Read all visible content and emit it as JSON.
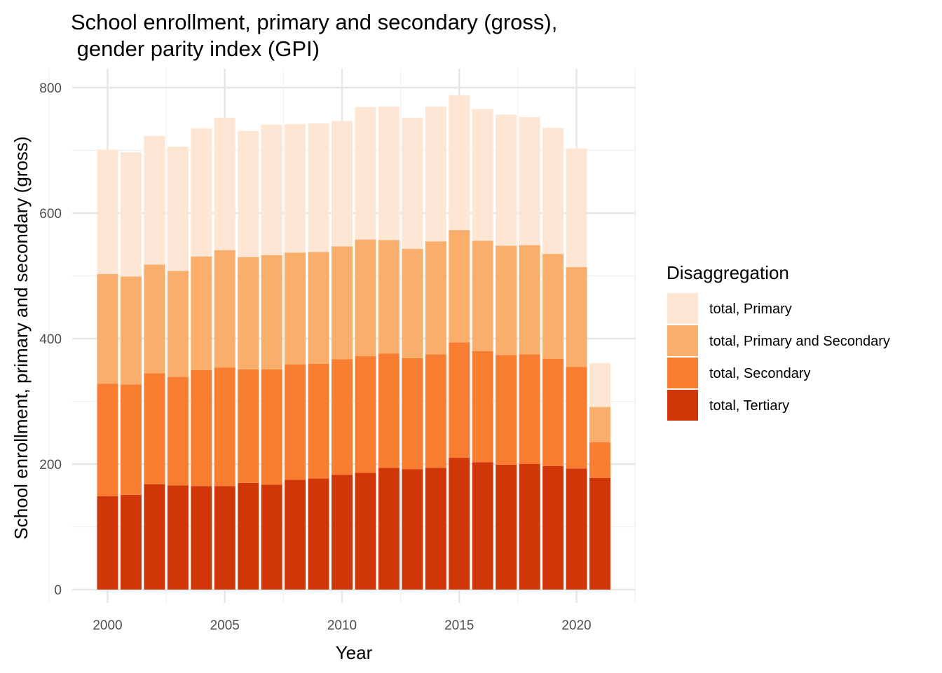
{
  "chart_data": {
    "type": "bar",
    "stacked": true,
    "title_line1": "School enrollment, primary and secondary (gross),",
    "title_line2": " gender parity index (GPI)",
    "xlabel": "Year",
    "ylabel": "School enrollment, primary and secondary (gross)",
    "xlim": [
      1999.5,
      2021.5
    ],
    "ylim": [
      0,
      800
    ],
    "x_ticks": [
      2000,
      2005,
      2010,
      2015,
      2020
    ],
    "y_ticks": [
      0,
      200,
      400,
      600,
      800
    ],
    "grid": true,
    "legend": {
      "title": "Disaggregation",
      "position": "right"
    },
    "x": [
      2000,
      2001,
      2002,
      2003,
      2004,
      2005,
      2006,
      2007,
      2008,
      2009,
      2010,
      2011,
      2012,
      2013,
      2014,
      2015,
      2016,
      2017,
      2018,
      2019,
      2020,
      2021
    ],
    "series": [
      {
        "name": "total, Tertiary",
        "color": "#d03608",
        "values": [
          149,
          151,
          168,
          166,
          165,
          165,
          170,
          167,
          175,
          177,
          183,
          186,
          194,
          192,
          194,
          210,
          203,
          199,
          200,
          197,
          193,
          178
        ]
      },
      {
        "name": "total, Secondary",
        "color": "#f87d31",
        "values": [
          179,
          176,
          177,
          173,
          185,
          189,
          181,
          184,
          184,
          183,
          184,
          186,
          182,
          177,
          181,
          184,
          177,
          175,
          175,
          171,
          162,
          57
        ]
      },
      {
        "name": "total, Primary and Secondary",
        "color": "#f9ae6b",
        "values": [
          175,
          172,
          173,
          169,
          181,
          187,
          179,
          182,
          178,
          178,
          180,
          186,
          181,
          174,
          180,
          179,
          176,
          174,
          174,
          167,
          159,
          56
        ]
      },
      {
        "name": "total, Primary",
        "color": "#fde6d3",
        "values": [
          198,
          198,
          205,
          198,
          204,
          211,
          201,
          208,
          205,
          205,
          200,
          211,
          213,
          209,
          215,
          215,
          210,
          209,
          204,
          201,
          189,
          70
        ]
      }
    ]
  }
}
